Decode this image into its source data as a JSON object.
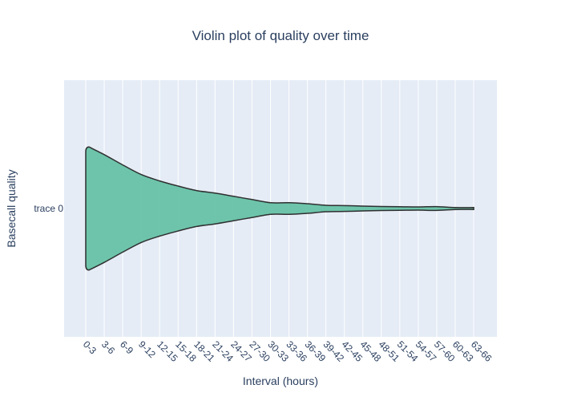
{
  "chart_data": {
    "type": "violin",
    "orientation": "horizontal",
    "title": "Violin plot of quality over time",
    "xlabel": "Interval (hours)",
    "ylabel": "Basecall quality",
    "categories": [
      "0-3",
      "3-6",
      "6-9",
      "9-12",
      "12-15",
      "15-18",
      "18-21",
      "21-24",
      "24-27",
      "27-30",
      "30-33",
      "33-36",
      "36-39",
      "39-42",
      "42-45",
      "45-48",
      "48-51",
      "51-54",
      "54-57",
      "57-60",
      "60-63",
      "63-66"
    ],
    "y_category": "trace 0",
    "half_width": [
      0.96,
      0.84,
      0.68,
      0.53,
      0.43,
      0.35,
      0.28,
      0.24,
      0.19,
      0.14,
      0.09,
      0.09,
      0.075,
      0.05,
      0.045,
      0.038,
      0.032,
      0.028,
      0.025,
      0.03,
      0.015,
      0.015
    ],
    "fill_color": "#66c2a5",
    "line_color": "#2f2f2f",
    "plot_bg": "#e5ecf6",
    "grid": true
  }
}
